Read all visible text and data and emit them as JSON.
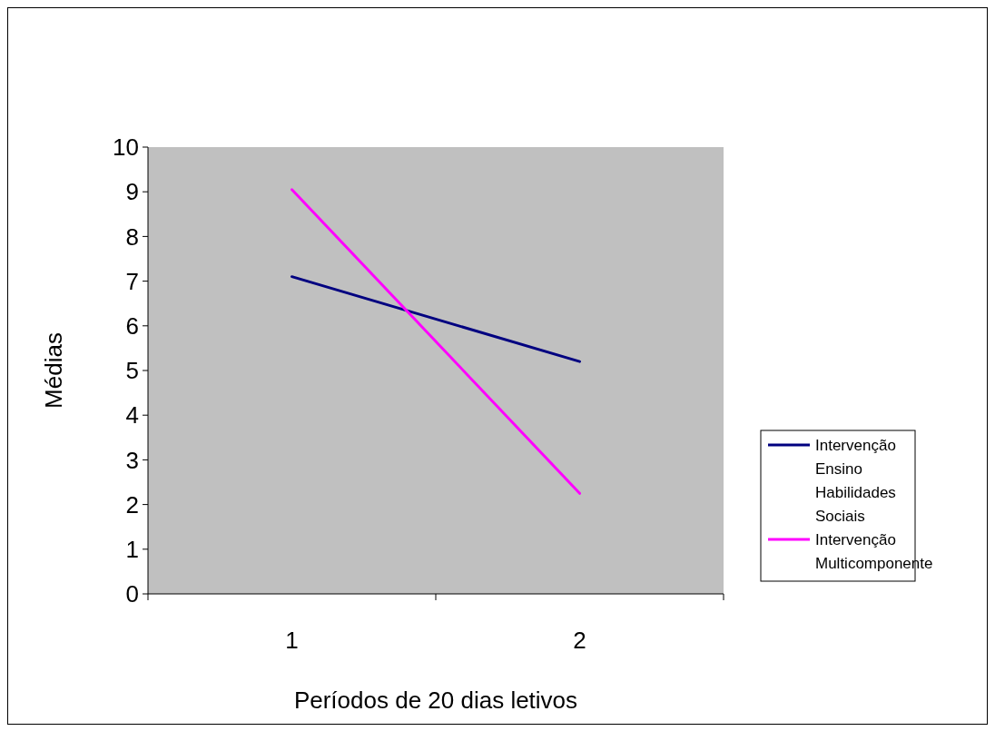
{
  "chart_data": {
    "type": "line",
    "xlabel": "Períodos de 20 dias letivos",
    "ylabel": "Médias",
    "categories": [
      "1",
      "2"
    ],
    "series": [
      {
        "name": "Intervenção Ensino Habilidades Sociais",
        "color": "#000080",
        "values": [
          7.1,
          5.2
        ]
      },
      {
        "name": "Intervenção Multicomponente",
        "color": "#ff00ff",
        "values": [
          9.05,
          2.25
        ]
      }
    ],
    "ylim": [
      0,
      10
    ],
    "yticks": [
      0,
      1,
      2,
      3,
      4,
      5,
      6,
      7,
      8,
      9,
      10
    ],
    "grid": false,
    "legend": "right",
    "marker": "none",
    "line_style": "solid"
  }
}
